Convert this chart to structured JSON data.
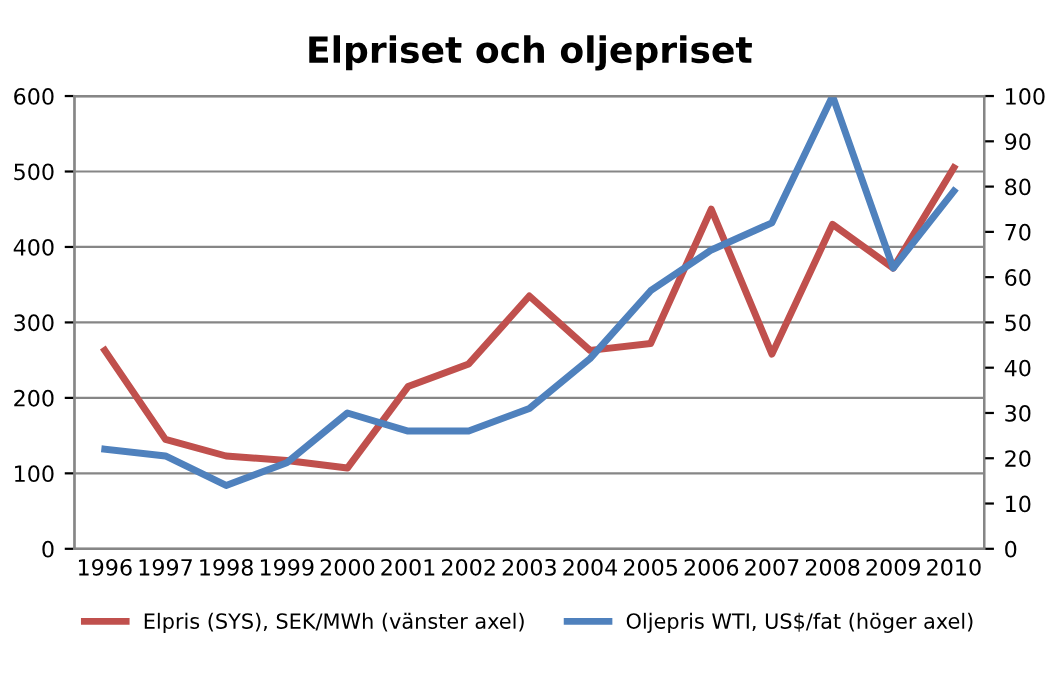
{
  "chart_data": {
    "type": "line",
    "title": "Elpriset och oljepriset",
    "categories": [
      "1996",
      "1997",
      "1998",
      "1999",
      "2000",
      "2001",
      "2002",
      "2003",
      "2004",
      "2005",
      "2006",
      "2007",
      "2008",
      "2009",
      "2010"
    ],
    "series": [
      {
        "name": "Elpris (SYS), SEK/MWh (vänster axel)",
        "color": "#c0504d",
        "values": [
          263,
          145,
          123,
          117,
          107,
          215,
          245,
          335,
          263,
          272,
          450,
          258,
          430,
          372,
          505
        ]
      },
      {
        "name": "Oljepris WTI, US$/fat (höger axel)",
        "color": "#4f81bd",
        "axis": "y2",
        "values": [
          22,
          20.5,
          14,
          19,
          30,
          26,
          26,
          31,
          42,
          57,
          66,
          72,
          100,
          62,
          79
        ]
      }
    ],
    "ylim": [
      0,
      600
    ],
    "yticks": [
      0,
      100,
      200,
      300,
      400,
      500,
      600
    ],
    "y2lim": [
      0,
      100
    ],
    "y2ticks": [
      0,
      10,
      20,
      30,
      40,
      50,
      60,
      70,
      80,
      90,
      100
    ],
    "grid": "y",
    "legend": "bottom",
    "line_style": "solid",
    "marker": "none"
  }
}
